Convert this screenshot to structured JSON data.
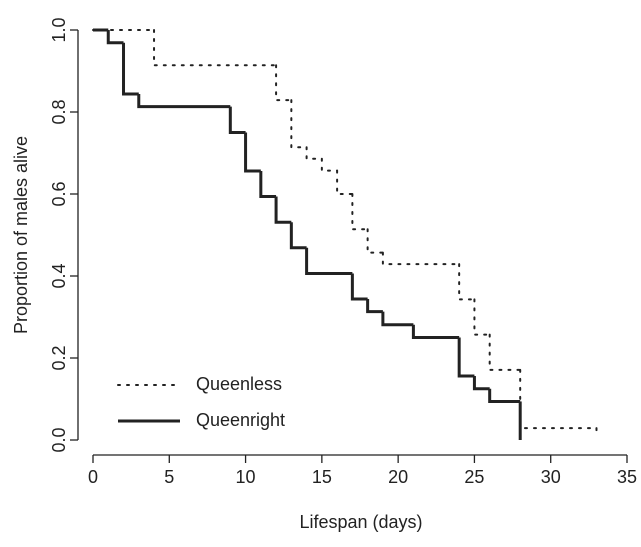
{
  "chart_data": {
    "type": "line",
    "step": "post",
    "x_label": "Lifespan (days)",
    "y_label": "Proportion of males alive",
    "xlim": [
      0,
      35
    ],
    "xticks": [
      0,
      5,
      10,
      15,
      20,
      25,
      30,
      35
    ],
    "ylim": [
      0,
      1
    ],
    "yticks": [
      {
        "value": 0,
        "label": "0.0"
      },
      0.2,
      0.4,
      0.6,
      0.8,
      {
        "value": 1,
        "label": "1.0"
      }
    ],
    "legend": "bottom-left",
    "series": [
      {
        "name": "Queenless",
        "color": "#222222",
        "dash": "dotted",
        "x": [
          0,
          4,
          12,
          13,
          14,
          15,
          16,
          17,
          18,
          19,
          24,
          25,
          26,
          28,
          33
        ],
        "values": [
          1,
          0.914,
          0.829,
          0.714,
          0.686,
          0.657,
          0.6,
          0.514,
          0.457,
          0.429,
          0.343,
          0.257,
          0.171,
          0.029,
          0.02
        ]
      },
      {
        "name": "Queenright",
        "color": "#222222",
        "dash": "solid",
        "x": [
          0,
          1,
          2,
          3,
          9,
          10,
          11,
          12,
          13,
          14,
          17,
          18,
          19,
          21,
          24,
          25,
          26,
          28
        ],
        "values": [
          1,
          0.969,
          0.844,
          0.813,
          0.75,
          0.656,
          0.594,
          0.531,
          0.469,
          0.406,
          0.344,
          0.313,
          0.281,
          0.25,
          0.156,
          0.125,
          0.094,
          0
        ]
      }
    ]
  }
}
